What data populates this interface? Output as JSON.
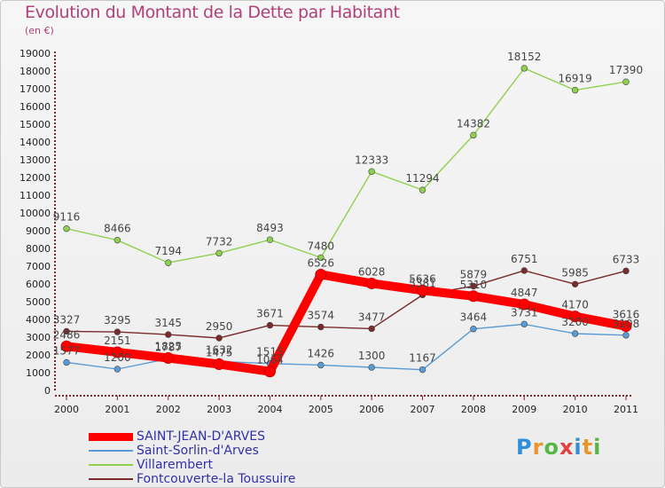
{
  "title": "Evolution du Montant de la Dette par Habitant",
  "subtitle": "(en €)",
  "logo_text": "Proxiti",
  "chart_data": {
    "type": "line",
    "title": "Evolution du Montant de la Dette par Habitant",
    "subtitle": "(en €)",
    "xlabel": "",
    "ylabel": "",
    "ylim": [
      0,
      19000
    ],
    "yticks": [
      0,
      1000,
      2000,
      3000,
      4000,
      5000,
      6000,
      7000,
      8000,
      9000,
      10000,
      11000,
      12000,
      13000,
      14000,
      15000,
      16000,
      17000,
      18000,
      19000
    ],
    "categories": [
      "2000",
      "2001",
      "2002",
      "2003",
      "2004",
      "2005",
      "2006",
      "2007",
      "2008",
      "2009",
      "2010",
      "2011"
    ],
    "grid": false,
    "legend_position": "bottom-left",
    "series": [
      {
        "name": "SAINT-JEAN-D'ARVES",
        "color": "#ff0000",
        "values": [
          2486,
          2151,
          1825,
          1475,
          1064,
          6526,
          6028,
          5636,
          5310,
          4847,
          4170,
          3616
        ]
      },
      {
        "name": "Saint-Sorlin-d'Arves",
        "color": "#5b9bd5",
        "values": [
          1577,
          1200,
          1787,
          1632,
          1515,
          1426,
          1300,
          1167,
          3464,
          3731,
          3200,
          3108
        ]
      },
      {
        "name": "Villarembert",
        "color": "#8fd14f",
        "values": [
          9116,
          8466,
          7194,
          7732,
          8493,
          7480,
          12333,
          11294,
          14382,
          18152,
          16919,
          17390
        ]
      },
      {
        "name": "Fontcouverte-la Toussuire",
        "color": "#7a2a2a",
        "values": [
          3327,
          3295,
          3145,
          2950,
          3671,
          3574,
          3477,
          5381,
          5879,
          6751,
          5985,
          6733
        ]
      }
    ]
  }
}
